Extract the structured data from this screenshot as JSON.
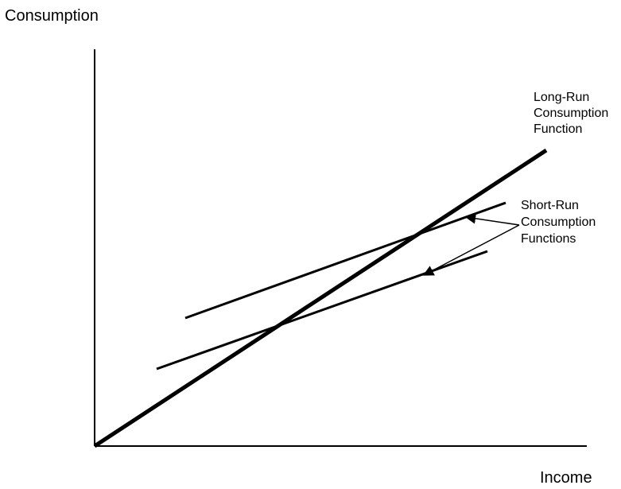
{
  "axes": {
    "y_label": "Consumption",
    "x_label": "Income"
  },
  "long_run": {
    "label_lines": [
      "Long-Run",
      "Consumption",
      "Function"
    ]
  },
  "short_run": {
    "label_lines": [
      "Short-Run",
      "Consumption",
      "Functions"
    ]
  },
  "colors": {
    "ink": "#000000",
    "background": "#ffffff"
  }
}
